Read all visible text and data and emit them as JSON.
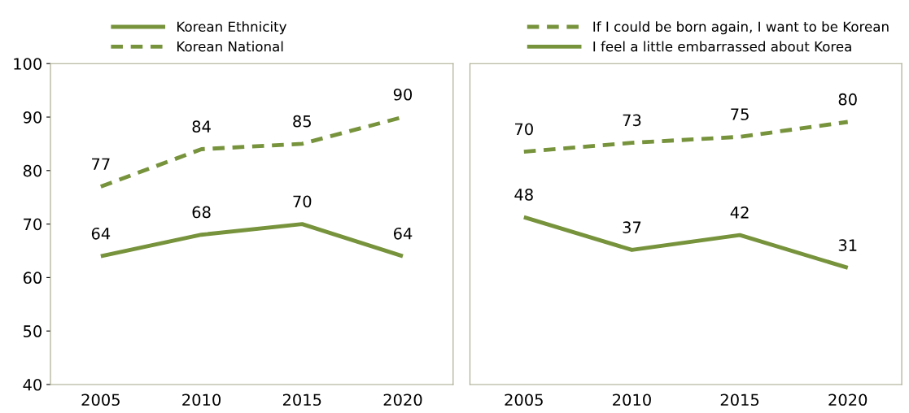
{
  "chart_data": [
    {
      "type": "line",
      "categories": [
        "2005",
        "2010",
        "2015",
        "2020"
      ],
      "ylim": [
        40,
        100
      ],
      "yticks": [
        40,
        50,
        60,
        70,
        80,
        90,
        100
      ],
      "grid": false,
      "legend": "top left",
      "data_labels": true,
      "marker": "none",
      "series": [
        {
          "name": "Korean Ethnicity",
          "color": "#77933c",
          "line_style": "solid",
          "values": [
            64,
            68,
            70,
            64
          ]
        },
        {
          "name": "Korean National",
          "color": "#77933c",
          "line_style": "dashed",
          "values": [
            77,
            84,
            85,
            90
          ]
        }
      ]
    },
    {
      "type": "line",
      "categories": [
        "2005",
        "2010",
        "2015",
        "2020"
      ],
      "tick_labels": "x",
      "grid": false,
      "legend": "top right",
      "data_labels": true,
      "marker": "none",
      "series": [
        {
          "name": "If I could be born again, I want to be Korean",
          "color": "#77933c",
          "line_style": "dashed",
          "values": [
            70,
            73,
            75,
            80
          ]
        },
        {
          "name": "I feel a little embarrassed about Korea",
          "color": "#77933c",
          "line_style": "solid",
          "values": [
            48,
            37,
            42,
            31
          ]
        }
      ]
    }
  ]
}
